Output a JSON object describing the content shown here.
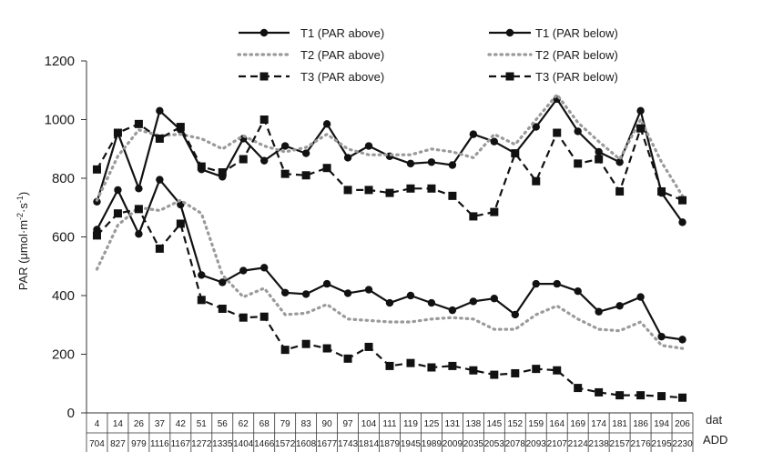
{
  "chart_data": {
    "type": "line",
    "ylabel_prefix": "PAR (μmol·m",
    "ylabel_sup1": "-2",
    "ylabel_mid": "·s",
    "ylabel_sup2": "-1",
    "ylabel_suffix": ")",
    "ylim": [
      0,
      1200
    ],
    "yticks": [
      0,
      200,
      400,
      600,
      800,
      1000,
      1200
    ],
    "grid": false,
    "legend_position": "top",
    "row_labels": {
      "dat": "dat",
      "add": "ADD"
    },
    "categories_dat": [
      "4",
      "14",
      "26",
      "37",
      "42",
      "51",
      "56",
      "62",
      "68",
      "79",
      "83",
      "90",
      "97",
      "104",
      "111",
      "119",
      "125",
      "131",
      "138",
      "145",
      "152",
      "159",
      "164",
      "169",
      "174",
      "181",
      "186",
      "194",
      "206"
    ],
    "categories_add": [
      "704",
      "827",
      "979",
      "1116",
      "1167",
      "1272",
      "1335",
      "1404",
      "1466",
      "1572",
      "1608",
      "1677",
      "1743",
      "1814",
      "1879",
      "1945",
      "1989",
      "2009",
      "2035",
      "2053",
      "2078",
      "2093",
      "2107",
      "2124",
      "2138",
      "2157",
      "2176",
      "2195",
      "2230"
    ],
    "series": [
      {
        "name": "T1 (PAR above)",
        "style": "solid",
        "marker": "circle",
        "values": [
          625,
          760,
          610,
          795,
          710,
          470,
          445,
          485,
          495,
          410,
          405,
          440,
          408,
          420,
          375,
          400,
          375,
          350,
          380,
          390,
          335,
          440,
          440,
          415,
          345,
          365,
          395,
          260,
          250
        ]
      },
      {
        "name": "T1 (PAR below)",
        "style": "solid",
        "marker": "circle",
        "values": [
          720,
          955,
          765,
          1030,
          965,
          830,
          805,
          935,
          860,
          910,
          885,
          985,
          870,
          910,
          875,
          850,
          855,
          845,
          950,
          925,
          885,
          975,
          1070,
          960,
          890,
          855,
          1030,
          750,
          650
        ]
      },
      {
        "name": "T2 (PAR above)",
        "style": "dotted",
        "marker": "none",
        "values": [
          490,
          640,
          700,
          690,
          725,
          680,
          470,
          395,
          425,
          335,
          340,
          370,
          320,
          315,
          310,
          310,
          320,
          325,
          320,
          285,
          285,
          335,
          365,
          320,
          285,
          280,
          310,
          230,
          220
        ]
      },
      {
        "name": "T2 (PAR below)",
        "style": "dotted",
        "marker": "none",
        "values": [
          725,
          875,
          965,
          945,
          950,
          935,
          900,
          945,
          910,
          890,
          905,
          950,
          900,
          880,
          880,
          880,
          900,
          890,
          870,
          950,
          915,
          1000,
          1085,
          990,
          925,
          865,
          1000,
          855,
          740
        ]
      },
      {
        "name": "T3 (PAR above)",
        "style": "dashed",
        "marker": "square",
        "values": [
          605,
          680,
          695,
          560,
          645,
          385,
          355,
          325,
          328,
          215,
          235,
          220,
          185,
          225,
          160,
          170,
          155,
          160,
          145,
          130,
          135,
          150,
          145,
          85,
          70,
          60,
          60,
          57,
          52
        ]
      },
      {
        "name": "T3 (PAR below)",
        "style": "dashed",
        "marker": "square",
        "values": [
          830,
          955,
          985,
          935,
          975,
          840,
          820,
          865,
          1000,
          815,
          810,
          835,
          760,
          760,
          750,
          765,
          765,
          740,
          670,
          685,
          885,
          790,
          955,
          850,
          865,
          755,
          970,
          755,
          725
        ]
      }
    ]
  }
}
